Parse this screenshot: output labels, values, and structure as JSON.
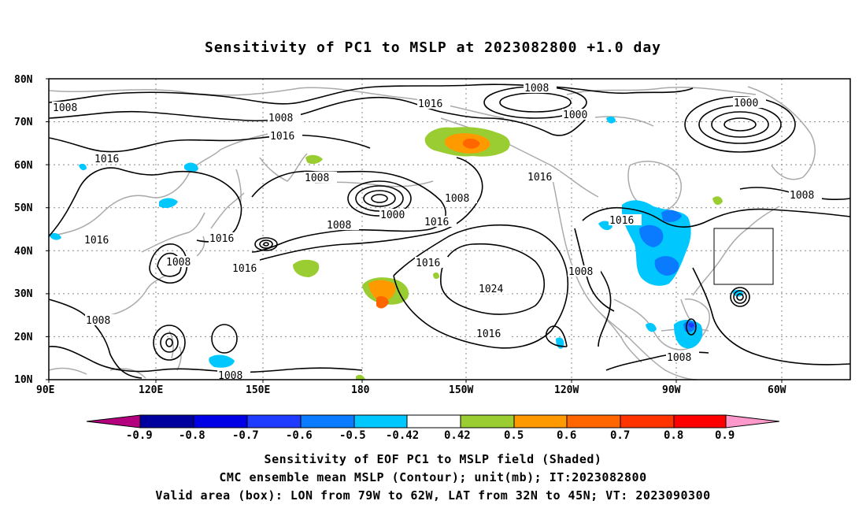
{
  "title": "Sensitivity of PC1 to MSLP at 2023082800 +1.0 day",
  "axes": {
    "lat_labels": [
      "80N",
      "70N",
      "60N",
      "50N",
      "40N",
      "30N",
      "20N",
      "10N"
    ],
    "lon_labels": [
      "90E",
      "120E",
      "150E",
      "180",
      "150W",
      "120W",
      "90W",
      "60W"
    ]
  },
  "contour_labels": [
    "1008",
    "1008",
    "1016",
    "1016",
    "1008",
    "1000",
    "1016",
    "1008",
    "1000",
    "1008",
    "1016",
    "1016",
    "1016",
    "1008",
    "1016",
    "1016",
    "1024",
    "1008",
    "1016",
    "1008",
    "1016",
    "1008",
    "1008",
    "1000",
    "1008",
    "1016",
    "1008"
  ],
  "colorbar": {
    "ticks": [
      "-0.9",
      "-0.8",
      "-0.7",
      "-0.6",
      "-0.5",
      "-0.42",
      "0.42",
      "0.5",
      "0.6",
      "0.7",
      "0.8",
      "0.9"
    ],
    "colors": [
      "#b4007f",
      "#00009f",
      "#0000e6",
      "#1e3cff",
      "#0a7bff",
      "#00c8ff",
      "#ffffff",
      "#9acd32",
      "#ff9900",
      "#ff6600",
      "#ff3300",
      "#ff0000",
      "#ff99cc"
    ]
  },
  "captions": {
    "line1": "Sensitivity of EOF PC1 to MSLP field (Shaded)",
    "line2": "CMC ensemble mean MSLP (Contour); unit(mb); IT:2023082800",
    "line3": "Valid area (box): LON from 79W to 62W, LAT from 32N to 45N; VT: 2023090300"
  }
}
